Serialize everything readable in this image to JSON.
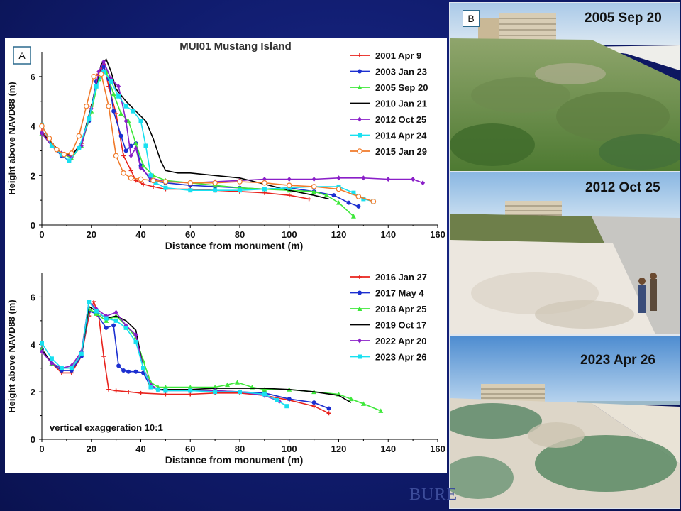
{
  "panel_a_label": "A",
  "panel_b_label": "B",
  "photos": {
    "top_caption": "2005 Sep 20",
    "middle_caption": "2012 Oct 25",
    "bottom_caption": "2023 Apr 26"
  },
  "logo_text": "BURE",
  "colors": {
    "2001 Apr 9": "#e8221c",
    "2003 Jan 23": "#1c2fd0",
    "2005 Sep 20": "#3ee83a",
    "2010 Jan 21": "#000000",
    "2012 Oct 25": "#8a1fc8",
    "2014 Apr 24": "#18e0f0",
    "2015 Jan 29": "#f07a2a"
  },
  "chart_data": [
    {
      "type": "line",
      "title": "MUI01 Mustang Island",
      "xlabel": "Distance from monument (m)",
      "ylabel": "Height above NAVD88 (m)",
      "xlim": [
        0,
        160
      ],
      "ylim": [
        0,
        7
      ],
      "xticks": [
        0,
        20,
        40,
        60,
        80,
        100,
        120,
        140,
        160
      ],
      "yticks": [
        0,
        2,
        4,
        6
      ],
      "legend_position": "top-right",
      "series": [
        {
          "name": "2001 Apr 9",
          "color": "#e8221c",
          "marker": "plus",
          "x": [
            0,
            4,
            8,
            12,
            16,
            20,
            23,
            25,
            27,
            30,
            33,
            36,
            38,
            41,
            45,
            50,
            60,
            70,
            80,
            90,
            100,
            108
          ],
          "y": [
            3.8,
            3.3,
            2.9,
            2.8,
            3.3,
            4.8,
            6.1,
            6.5,
            5.6,
            4.5,
            2.8,
            2.2,
            1.8,
            1.65,
            1.55,
            1.45,
            1.45,
            1.4,
            1.35,
            1.3,
            1.2,
            1.05
          ]
        },
        {
          "name": "2003 Jan 23",
          "color": "#1c2fd0",
          "marker": "circle",
          "x": [
            0,
            4,
            8,
            11,
            15,
            19,
            22,
            25,
            27,
            29,
            32,
            34,
            36,
            38,
            40,
            44,
            50,
            60,
            70,
            80,
            90,
            100,
            110,
            118,
            124,
            128
          ],
          "y": [
            3.7,
            3.2,
            2.8,
            2.6,
            3.1,
            4.2,
            5.8,
            6.4,
            5.9,
            4.6,
            3.6,
            3.0,
            3.2,
            3.3,
            2.4,
            1.8,
            1.7,
            1.6,
            1.55,
            1.5,
            1.45,
            1.5,
            1.35,
            1.2,
            0.9,
            0.75
          ]
        },
        {
          "name": "2005 Sep 20",
          "color": "#3ee83a",
          "marker": "triangle",
          "x": [
            0,
            4,
            8,
            12,
            16,
            20,
            23,
            26,
            29,
            32,
            35,
            38,
            41,
            45,
            50,
            60,
            70,
            80,
            90,
            100,
            110,
            115,
            120,
            126
          ],
          "y": [
            3.7,
            3.2,
            2.9,
            2.7,
            3.2,
            4.6,
            5.9,
            6.2,
            5.3,
            4.5,
            4.2,
            3.3,
            2.4,
            2.0,
            1.8,
            1.7,
            1.6,
            1.5,
            1.45,
            1.4,
            1.35,
            1.2,
            0.9,
            0.35
          ]
        },
        {
          "name": "2010 Jan 21",
          "color": "#000000",
          "marker": "none",
          "x": [
            0,
            4,
            8,
            12,
            16,
            20,
            24,
            26,
            28,
            30,
            34,
            38,
            42,
            45,
            48,
            50,
            55,
            60,
            70,
            80,
            90,
            100,
            110,
            116
          ],
          "y": [
            3.7,
            3.3,
            2.9,
            2.8,
            3.3,
            4.8,
            6.5,
            6.7,
            6.2,
            5.5,
            5.0,
            4.6,
            4.2,
            3.5,
            2.6,
            2.2,
            2.1,
            2.1,
            2.0,
            1.9,
            1.65,
            1.4,
            1.2,
            1.05
          ]
        },
        {
          "name": "2012 Oct 25",
          "color": "#8a1fc8",
          "marker": "diamond",
          "x": [
            0,
            4,
            8,
            12,
            16,
            20,
            23,
            25,
            28,
            31,
            34,
            36,
            38,
            40,
            44,
            50,
            60,
            70,
            80,
            90,
            100,
            110,
            120,
            130,
            140,
            150,
            154
          ],
          "y": [
            3.7,
            3.2,
            2.9,
            2.75,
            3.2,
            4.7,
            6.2,
            6.6,
            5.9,
            5.6,
            4.2,
            2.8,
            3.1,
            2.3,
            1.9,
            1.75,
            1.7,
            1.75,
            1.8,
            1.85,
            1.85,
            1.85,
            1.9,
            1.9,
            1.85,
            1.85,
            1.7
          ]
        },
        {
          "name": "2014 Apr 24",
          "color": "#18e0f0",
          "marker": "square",
          "x": [
            0,
            4,
            8,
            11,
            15,
            19,
            22,
            25,
            28,
            31,
            34,
            37,
            40,
            42,
            44,
            46,
            50,
            60,
            70,
            80,
            90,
            100,
            110,
            120,
            126,
            130,
            134
          ],
          "y": [
            4.05,
            3.2,
            2.85,
            2.6,
            3.1,
            4.3,
            5.6,
            6.2,
            5.8,
            5.2,
            4.8,
            4.6,
            4.2,
            3.2,
            2.0,
            1.7,
            1.5,
            1.4,
            1.4,
            1.4,
            1.45,
            1.5,
            1.55,
            1.55,
            1.3,
            1.05,
            0.95
          ]
        },
        {
          "name": "2015 Jan 29",
          "color": "#f07a2a",
          "marker": "open-circle",
          "x": [
            0,
            3,
            6,
            9,
            12,
            15,
            18,
            21,
            24,
            27,
            30,
            33,
            36,
            40,
            45,
            50,
            60,
            70,
            80,
            90,
            100,
            110,
            120,
            128,
            134
          ],
          "y": [
            4.0,
            3.5,
            3.05,
            2.85,
            2.9,
            3.6,
            4.8,
            6.0,
            6.1,
            4.8,
            2.8,
            2.1,
            1.9,
            1.85,
            1.8,
            1.75,
            1.7,
            1.7,
            1.75,
            1.7,
            1.6,
            1.55,
            1.45,
            1.15,
            0.95
          ]
        }
      ]
    },
    {
      "type": "line",
      "xlabel": "Distance from monument (m)",
      "ylabel": "Height above NAVD88 (m)",
      "annotation": "vertical exaggeration 10:1",
      "xlim": [
        0,
        160
      ],
      "ylim": [
        0,
        7
      ],
      "xticks": [
        0,
        20,
        40,
        60,
        80,
        100,
        120,
        140,
        160
      ],
      "yticks": [
        0,
        2,
        4,
        6
      ],
      "legend_position": "top-right",
      "series": [
        {
          "name": "2016 Jan 27",
          "color": "#e8221c",
          "marker": "plus",
          "x": [
            0,
            4,
            8,
            12,
            16,
            19,
            21,
            23,
            25,
            27,
            30,
            35,
            40,
            50,
            60,
            70,
            80,
            90,
            100,
            110,
            116
          ],
          "y": [
            3.8,
            3.2,
            2.8,
            2.8,
            3.5,
            5.2,
            5.8,
            5.2,
            3.5,
            2.1,
            2.05,
            2.0,
            1.95,
            1.9,
            1.9,
            1.95,
            1.95,
            1.85,
            1.65,
            1.4,
            1.1
          ]
        },
        {
          "name": "2017 May 4",
          "color": "#1c2fd0",
          "marker": "circle",
          "x": [
            0,
            4,
            8,
            12,
            16,
            19,
            22,
            26,
            29,
            31,
            33,
            35,
            38,
            41,
            44,
            47,
            50,
            60,
            70,
            80,
            90,
            100,
            110,
            116
          ],
          "y": [
            3.8,
            3.2,
            2.9,
            2.9,
            3.5,
            5.4,
            5.3,
            4.7,
            4.8,
            3.1,
            2.9,
            2.85,
            2.85,
            2.8,
            2.2,
            2.1,
            2.1,
            2.05,
            2.05,
            2.0,
            1.95,
            1.7,
            1.55,
            1.3
          ]
        },
        {
          "name": "2018 Apr 25",
          "color": "#3ee83a",
          "marker": "triangle",
          "x": [
            0,
            4,
            8,
            12,
            16,
            19,
            22,
            26,
            30,
            34,
            38,
            41,
            44,
            47,
            50,
            60,
            70,
            75,
            79,
            85,
            90,
            100,
            110,
            120,
            125,
            130,
            137
          ],
          "y": [
            3.8,
            3.2,
            3.0,
            3.0,
            3.6,
            5.5,
            5.3,
            5.0,
            5.2,
            4.8,
            4.3,
            3.3,
            2.4,
            2.2,
            2.2,
            2.2,
            2.2,
            2.3,
            2.4,
            2.2,
            2.1,
            2.1,
            2.0,
            1.9,
            1.7,
            1.5,
            1.2
          ]
        },
        {
          "name": "2019 Oct 17",
          "color": "#000000",
          "marker": "none",
          "x": [
            0,
            4,
            8,
            12,
            16,
            19,
            22,
            26,
            30,
            34,
            38,
            41,
            44,
            47,
            50,
            60,
            70,
            80,
            90,
            100,
            110,
            120,
            125
          ],
          "y": [
            3.8,
            3.2,
            3.0,
            3.0,
            3.6,
            5.6,
            5.4,
            5.1,
            5.2,
            5.0,
            4.6,
            3.0,
            2.2,
            2.1,
            2.1,
            2.1,
            2.15,
            2.15,
            2.15,
            2.1,
            2.0,
            1.85,
            1.55
          ]
        },
        {
          "name": "2022 Apr 20",
          "color": "#8a1fc8",
          "marker": "diamond",
          "x": [
            0,
            4,
            8,
            12,
            16,
            19,
            22,
            26,
            30,
            34,
            38,
            41,
            44,
            47,
            50,
            60,
            70,
            80,
            90,
            96
          ],
          "y": [
            3.7,
            3.2,
            3.0,
            3.1,
            3.7,
            5.8,
            5.5,
            5.2,
            5.35,
            4.8,
            4.4,
            3.0,
            2.3,
            2.1,
            2.05,
            2.05,
            2.05,
            2.0,
            1.85,
            1.6
          ]
        },
        {
          "name": "2023 Apr 26",
          "color": "#18e0f0",
          "marker": "square",
          "x": [
            0,
            4,
            8,
            12,
            16,
            19,
            22,
            26,
            30,
            34,
            38,
            41,
            44,
            47,
            50,
            60,
            70,
            80,
            90,
            95,
            99
          ],
          "y": [
            4.05,
            3.4,
            3.0,
            3.0,
            3.6,
            5.8,
            5.4,
            5.1,
            5.0,
            4.7,
            4.1,
            3.0,
            2.2,
            2.1,
            2.05,
            2.05,
            2.0,
            2.0,
            1.9,
            1.65,
            1.4
          ]
        }
      ]
    }
  ]
}
